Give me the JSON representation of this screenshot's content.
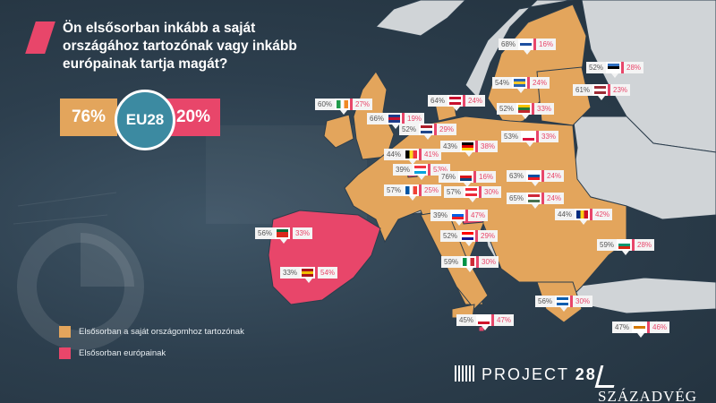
{
  "title": "Ön elsősorban inkább a saját országához tartozónak vagy inkább európainak tartja magát?",
  "summary": {
    "national_pct": "76%",
    "eu_label": "EU28",
    "european_pct": "20%"
  },
  "legend": {
    "national": {
      "label": "Elsősorban a saját országomhoz tartozónak",
      "color": "#e3a55c"
    },
    "european": {
      "label": "Elsősorban európainak",
      "color": "#e8466a"
    }
  },
  "colors": {
    "national_fill": "#e3a55c",
    "european_fill": "#e8466a",
    "non_member_fill": "#d0d4d7",
    "background": "#2b3d4c",
    "eu_circle": "#3c8aa1"
  },
  "countries": [
    {
      "flag": "finland",
      "national": "68%",
      "european": "16%"
    },
    {
      "flag": "estonia",
      "national": "52%",
      "european": "28%"
    },
    {
      "flag": "latvia",
      "national": "61%",
      "european": "23%"
    },
    {
      "flag": "sweden",
      "national": "54%",
      "european": "24%"
    },
    {
      "flag": "lithuania",
      "national": "52%",
      "european": "33%"
    },
    {
      "flag": "denmark",
      "national": "64%",
      "european": "24%"
    },
    {
      "flag": "ireland",
      "national": "60%",
      "european": "27%"
    },
    {
      "flag": "uk",
      "national": "66%",
      "european": "19%"
    },
    {
      "flag": "netherlands",
      "national": "52%",
      "european": "29%"
    },
    {
      "flag": "germany",
      "national": "43%",
      "european": "38%"
    },
    {
      "flag": "poland",
      "national": "53%",
      "european": "33%"
    },
    {
      "flag": "belgium",
      "national": "44%",
      "european": "41%"
    },
    {
      "flag": "luxembourg",
      "national": "39%",
      "european": "53%"
    },
    {
      "flag": "czechia",
      "national": "76%",
      "european": "16%"
    },
    {
      "flag": "slovakia",
      "national": "63%",
      "european": "24%"
    },
    {
      "flag": "france",
      "national": "57%",
      "european": "25%"
    },
    {
      "flag": "austria",
      "national": "57%",
      "european": "30%"
    },
    {
      "flag": "hungary",
      "national": "65%",
      "european": "24%"
    },
    {
      "flag": "romania",
      "national": "44%",
      "european": "42%"
    },
    {
      "flag": "slovenia",
      "national": "39%",
      "european": "47%"
    },
    {
      "flag": "croatia",
      "national": "52%",
      "european": "29%"
    },
    {
      "flag": "portugal",
      "national": "56%",
      "european": "33%"
    },
    {
      "flag": "spain",
      "national": "33%",
      "european": "54%"
    },
    {
      "flag": "italy",
      "national": "59%",
      "european": "30%"
    },
    {
      "flag": "bulgaria",
      "national": "59%",
      "european": "28%"
    },
    {
      "flag": "greece",
      "national": "56%",
      "european": "30%"
    },
    {
      "flag": "malta",
      "national": "45%",
      "european": "47%"
    },
    {
      "flag": "cyprus",
      "national": "47%",
      "european": "46%"
    }
  ],
  "footer": {
    "project": "PROJECT",
    "project_num": "28",
    "publisher": "SZÁZADVÉG"
  }
}
